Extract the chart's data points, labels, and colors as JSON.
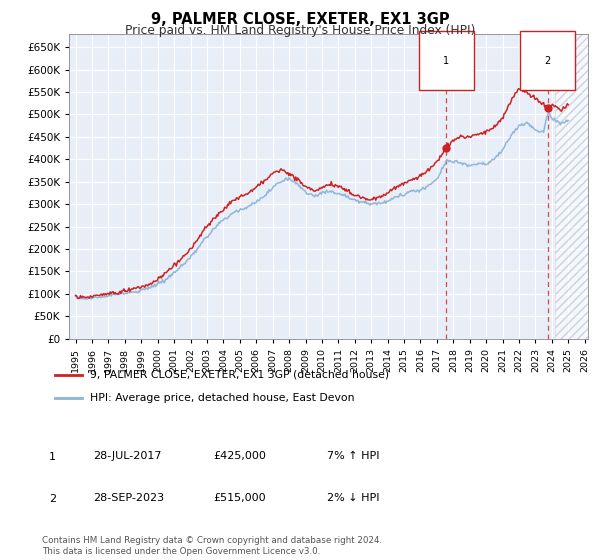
{
  "title": "9, PALMER CLOSE, EXETER, EX1 3GP",
  "subtitle": "Price paid vs. HM Land Registry's House Price Index (HPI)",
  "hpi_color": "#8ab4d8",
  "price_color": "#cc2222",
  "transaction1_x": 2017.57,
  "transaction1_y": 425000,
  "transaction2_x": 2023.75,
  "transaction2_y": 515000,
  "ylabel_ticks": [
    0,
    50000,
    100000,
    150000,
    200000,
    250000,
    300000,
    350000,
    400000,
    450000,
    500000,
    550000,
    600000,
    650000
  ],
  "ylim": [
    0,
    680000
  ],
  "xlim_left": 1994.6,
  "xlim_right": 2026.2,
  "plot_bg_color": "#e8eef8",
  "grid_color": "#ffffff",
  "legend_label_price": "9, PALMER CLOSE, EXETER, EX1 3GP (detached house)",
  "legend_label_hpi": "HPI: Average price, detached house, East Devon",
  "t1_display": "28-JUL-2017",
  "t1_price": "£425,000",
  "t1_hpi": "7% ↑ HPI",
  "t2_display": "28-SEP-2023",
  "t2_price": "£515,000",
  "t2_hpi": "2% ↓ HPI",
  "footer": "Contains HM Land Registry data © Crown copyright and database right 2024.\nThis data is licensed under the Open Government Licence v3.0."
}
